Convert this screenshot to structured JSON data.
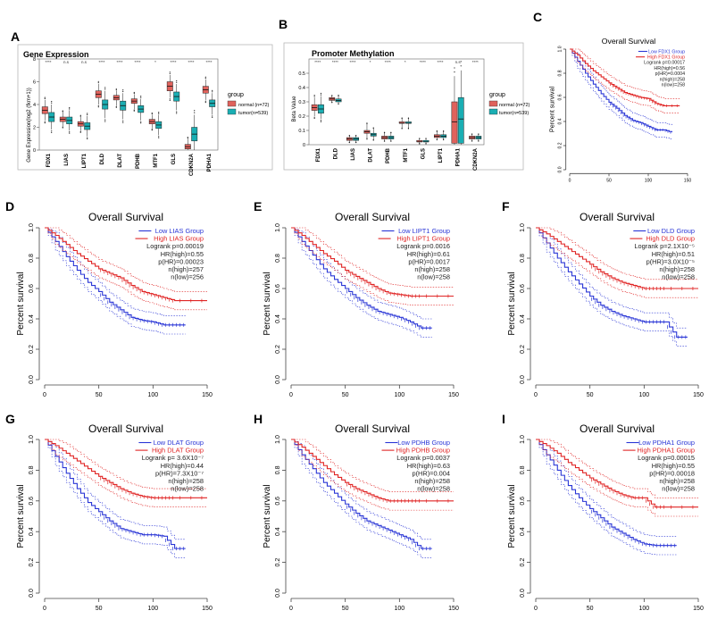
{
  "panels": {
    "A": {
      "letter": "A",
      "title": "Gene Expression",
      "ylabel": "Gene Expression(log2 (fkm+1))",
      "legend_title": "group",
      "legend_items": [
        "normal (n=72)",
        "tumor(n=539)"
      ]
    },
    "B": {
      "letter": "B",
      "title": "Promoter Methylation",
      "ylabel": "Beta Value",
      "legend_title": "group",
      "legend_items": [
        "normal (n=72)",
        "tumor(n=539)"
      ]
    },
    "C": {
      "letter": "C"
    },
    "D": {
      "letter": "D"
    },
    "E": {
      "letter": "E"
    },
    "F": {
      "letter": "F"
    },
    "G": {
      "letter": "G"
    },
    "H": {
      "letter": "H"
    },
    "I": {
      "letter": "I"
    }
  },
  "colors": {
    "normal": "#e0625c",
    "tumor": "#1aaeb3",
    "low": "#2a36d6",
    "high": "#e02525",
    "axis": "#444444"
  },
  "chart_data": [
    {
      "id": "A",
      "type": "box",
      "title": "Gene Expression",
      "ylabel": "Gene Expression(log2 (fkm+1))",
      "ylim": [
        0,
        8
      ],
      "yticks": [
        0,
        2,
        4,
        6,
        8
      ],
      "categories": [
        "FDX1",
        "LIAS",
        "LIPT1",
        "DLD",
        "DLAT",
        "PDHB",
        "MTF1",
        "GLS",
        "CDKN2A",
        "PDHA1"
      ],
      "significance": [
        "****",
        "n.s",
        "n.s",
        "****",
        "****",
        "****",
        "*",
        "****",
        "****",
        "****"
      ],
      "series": [
        {
          "name": "normal (n=72)",
          "key": "normal",
          "median": [
            3.5,
            2.7,
            2.3,
            4.9,
            4.6,
            4.3,
            2.5,
            5.6,
            0.3,
            5.3
          ],
          "q1": [
            3.2,
            2.5,
            2.1,
            4.6,
            4.4,
            4.1,
            2.3,
            5.2,
            0.1,
            5.0
          ],
          "q3": [
            3.8,
            2.9,
            2.5,
            5.2,
            4.8,
            4.5,
            2.7,
            6.0,
            0.5,
            5.6
          ],
          "low": [
            2.6,
            2.1,
            1.7,
            4.0,
            3.9,
            3.6,
            1.9,
            4.6,
            0.0,
            4.4
          ],
          "high": [
            4.4,
            3.3,
            2.9,
            5.8,
            5.2,
            4.9,
            3.1,
            6.6,
            1.0,
            6.2
          ]
        },
        {
          "name": "tumor(n=539)",
          "key": "tumor",
          "median": [
            2.9,
            2.6,
            2.1,
            4.0,
            3.9,
            3.6,
            2.2,
            4.7,
            1.4,
            4.1
          ],
          "q1": [
            2.5,
            2.3,
            1.8,
            3.6,
            3.5,
            3.3,
            1.9,
            4.3,
            0.8,
            3.8
          ],
          "q3": [
            3.3,
            2.9,
            2.4,
            4.4,
            4.3,
            3.9,
            2.5,
            5.1,
            2.0,
            4.4
          ],
          "low": [
            1.8,
            1.7,
            1.2,
            2.8,
            2.7,
            2.6,
            1.3,
            3.5,
            0.0,
            3.1
          ],
          "high": [
            4.0,
            3.5,
            3.0,
            5.2,
            5.0,
            4.5,
            3.1,
            5.8,
            3.1,
            5.0
          ]
        }
      ]
    },
    {
      "id": "B",
      "type": "box",
      "title": "Promoter Methylation",
      "ylabel": "Beta Value",
      "ylim": [
        0,
        0.6
      ],
      "yticks": [
        0,
        0.1,
        0.2,
        0.3,
        0.4,
        0.5
      ],
      "categories": [
        "FDX1",
        "DLD",
        "LIAS",
        "DLAT",
        "PDHB",
        "MTF1",
        "GLS",
        "LIPT1",
        "PDHA1",
        "CDKN2A"
      ],
      "significance": [
        "****",
        "****",
        "****",
        "*",
        "****",
        "*",
        "****",
        "****",
        "n.s",
        "****"
      ],
      "series": [
        {
          "name": "normal (n=72)",
          "key": "normal",
          "median": [
            0.26,
            0.32,
            0.04,
            0.09,
            0.05,
            0.15,
            0.02,
            0.06,
            0.16,
            0.05
          ],
          "q1": [
            0.24,
            0.31,
            0.03,
            0.08,
            0.04,
            0.15,
            0.02,
            0.05,
            0.01,
            0.04
          ],
          "q3": [
            0.28,
            0.33,
            0.05,
            0.1,
            0.06,
            0.16,
            0.03,
            0.07,
            0.3,
            0.06
          ],
          "low": [
            0.2,
            0.3,
            0.02,
            0.05,
            0.03,
            0.12,
            0.01,
            0.04,
            0.0,
            0.03
          ],
          "high": [
            0.33,
            0.34,
            0.06,
            0.14,
            0.08,
            0.18,
            0.04,
            0.09,
            0.48,
            0.07
          ]
        },
        {
          "name": "tumor(n=539)",
          "key": "tumor",
          "median": [
            0.25,
            0.31,
            0.04,
            0.07,
            0.05,
            0.15,
            0.02,
            0.06,
            0.18,
            0.05
          ],
          "q1": [
            0.22,
            0.3,
            0.03,
            0.06,
            0.04,
            0.15,
            0.02,
            0.05,
            0.01,
            0.04
          ],
          "q3": [
            0.28,
            0.32,
            0.05,
            0.08,
            0.06,
            0.16,
            0.03,
            0.07,
            0.33,
            0.06
          ],
          "low": [
            0.18,
            0.29,
            0.02,
            0.04,
            0.03,
            0.12,
            0.01,
            0.04,
            0.0,
            0.03
          ],
          "high": [
            0.34,
            0.34,
            0.06,
            0.11,
            0.08,
            0.18,
            0.04,
            0.09,
            0.52,
            0.07
          ]
        }
      ]
    },
    {
      "id": "C",
      "type": "line",
      "title": "Overall Survival",
      "ylabel": "Percent survival",
      "xlim": [
        0,
        150
      ],
      "ylim": [
        0,
        1
      ],
      "xticks": [
        0,
        50,
        100,
        150
      ],
      "yticks": [
        0,
        0.2,
        0.4,
        0.6,
        0.8,
        1.0
      ],
      "stats": [
        "Low FDX1 Group",
        "High FDX1 Group",
        "Logrank p=0.00017",
        "HR(high)=0.56",
        "p(HR)=0.0004",
        "n(high)=258",
        "n(low)=258"
      ],
      "series": [
        {
          "name": "Low FDX1 Group",
          "key": "low",
          "x": [
            0,
            10,
            20,
            30,
            40,
            50,
            60,
            70,
            80,
            90,
            100,
            110,
            120,
            130
          ],
          "y": [
            1.0,
            0.9,
            0.8,
            0.71,
            0.63,
            0.56,
            0.51,
            0.45,
            0.41,
            0.39,
            0.36,
            0.33,
            0.33,
            0.31
          ]
        },
        {
          "name": "High FDX1 Group",
          "key": "high",
          "x": [
            0,
            10,
            20,
            30,
            40,
            50,
            60,
            70,
            80,
            90,
            100,
            110,
            120,
            140
          ],
          "y": [
            1.0,
            0.95,
            0.88,
            0.82,
            0.77,
            0.72,
            0.68,
            0.64,
            0.62,
            0.6,
            0.59,
            0.55,
            0.53,
            0.53
          ]
        }
      ]
    },
    {
      "id": "D",
      "type": "line",
      "title": "Overall Survival",
      "ylabel": "Percent survival",
      "xlim": [
        0,
        150
      ],
      "ylim": [
        0,
        1
      ],
      "xticks": [
        0,
        50,
        100,
        150
      ],
      "yticks": [
        0,
        0.2,
        0.4,
        0.6,
        0.8,
        1.0
      ],
      "stats": [
        "Low LIAS Group",
        "High LIAS Group",
        "Logrank p=0.00019",
        "HR(high)=0.55",
        "p(HR)=0.00023",
        "n(high)=257",
        "n(low)=256"
      ],
      "series": [
        {
          "name": "Low LIAS Group",
          "key": "low",
          "x": [
            0,
            10,
            20,
            30,
            40,
            50,
            60,
            70,
            80,
            90,
            100,
            110,
            120,
            130
          ],
          "y": [
            1.0,
            0.91,
            0.81,
            0.72,
            0.64,
            0.58,
            0.51,
            0.46,
            0.41,
            0.39,
            0.38,
            0.36,
            0.36,
            0.36
          ]
        },
        {
          "name": "High LIAS Group",
          "key": "high",
          "x": [
            0,
            10,
            20,
            30,
            40,
            50,
            60,
            70,
            80,
            90,
            100,
            110,
            120,
            150
          ],
          "y": [
            1.0,
            0.95,
            0.89,
            0.83,
            0.78,
            0.73,
            0.7,
            0.67,
            0.62,
            0.58,
            0.56,
            0.54,
            0.52,
            0.52
          ]
        }
      ]
    },
    {
      "id": "E",
      "type": "line",
      "title": "Overall Survival",
      "ylabel": "Percent survival",
      "xlim": [
        0,
        150
      ],
      "ylim": [
        0,
        1
      ],
      "xticks": [
        0,
        50,
        100,
        150
      ],
      "yticks": [
        0,
        0.2,
        0.4,
        0.6,
        0.8,
        1.0
      ],
      "stats": [
        "Low LIPT1 Group",
        "High LIPT1 Group",
        "Logrank p=0.0016",
        "HR(high)=0.61",
        "p(HR)=0.0017",
        "n(high)=258",
        "n(low)=258"
      ],
      "series": [
        {
          "name": "Low LIPT1 Group",
          "key": "low",
          "x": [
            0,
            10,
            20,
            30,
            40,
            50,
            60,
            70,
            80,
            90,
            100,
            110,
            120,
            130
          ],
          "y": [
            1.0,
            0.91,
            0.82,
            0.73,
            0.66,
            0.6,
            0.54,
            0.49,
            0.45,
            0.43,
            0.41,
            0.38,
            0.34,
            0.34
          ]
        },
        {
          "name": "High LIPT1 Group",
          "key": "high",
          "x": [
            0,
            10,
            20,
            30,
            40,
            50,
            60,
            70,
            80,
            90,
            100,
            110,
            120,
            150
          ],
          "y": [
            1.0,
            0.95,
            0.89,
            0.83,
            0.78,
            0.72,
            0.68,
            0.64,
            0.6,
            0.57,
            0.56,
            0.55,
            0.55,
            0.55
          ]
        }
      ]
    },
    {
      "id": "F",
      "type": "line",
      "title": "Overall Survival",
      "ylabel": "Percent survival",
      "xlim": [
        0,
        150
      ],
      "ylim": [
        0,
        1
      ],
      "xticks": [
        0,
        50,
        100,
        150
      ],
      "yticks": [
        0,
        0.2,
        0.4,
        0.6,
        0.8,
        1.0
      ],
      "stats": [
        "Low DLD Group",
        "High DLD Group",
        "Logrank p=2.1X10⁻⁵",
        "HR(high)=0.51",
        "p(HR)=3.0X10⁻⁵",
        "n(high)=258",
        "n(low)=258"
      ],
      "series": [
        {
          "name": "Low DLD Group",
          "key": "low",
          "x": [
            0,
            10,
            20,
            30,
            40,
            50,
            60,
            70,
            80,
            90,
            100,
            110,
            120,
            130,
            140
          ],
          "y": [
            1.0,
            0.9,
            0.8,
            0.71,
            0.63,
            0.55,
            0.49,
            0.45,
            0.42,
            0.4,
            0.38,
            0.38,
            0.38,
            0.28,
            0.28
          ]
        },
        {
          "name": "High DLD Group",
          "key": "high",
          "x": [
            0,
            10,
            20,
            30,
            40,
            50,
            60,
            70,
            80,
            90,
            100,
            110,
            120,
            150
          ],
          "y": [
            1.0,
            0.96,
            0.91,
            0.86,
            0.81,
            0.76,
            0.71,
            0.67,
            0.64,
            0.62,
            0.6,
            0.6,
            0.6,
            0.6
          ]
        }
      ]
    },
    {
      "id": "G",
      "type": "line",
      "title": "Overall Survival",
      "ylabel": "Percent survival",
      "xlim": [
        0,
        150
      ],
      "ylim": [
        0,
        1
      ],
      "xticks": [
        0,
        50,
        100,
        150
      ],
      "yticks": [
        0,
        0.2,
        0.4,
        0.6,
        0.8,
        1.0
      ],
      "stats": [
        "Low DLAT Group",
        "High DLAT Group",
        "Logrank p= 3.6X10⁻⁷",
        "HR(high)=0.44",
        "p(HR)=7.3X10⁻⁷",
        "n(high)=258",
        "n(low)=258"
      ],
      "series": [
        {
          "name": "Low DLAT Group",
          "key": "low",
          "x": [
            0,
            10,
            20,
            30,
            40,
            50,
            60,
            70,
            80,
            90,
            100,
            110,
            120,
            130
          ],
          "y": [
            1.0,
            0.89,
            0.78,
            0.68,
            0.59,
            0.53,
            0.47,
            0.42,
            0.4,
            0.38,
            0.38,
            0.37,
            0.29,
            0.29
          ]
        },
        {
          "name": "High DLAT Group",
          "key": "high",
          "x": [
            0,
            10,
            20,
            30,
            40,
            50,
            60,
            70,
            80,
            90,
            100,
            110,
            120,
            150
          ],
          "y": [
            1.0,
            0.96,
            0.91,
            0.86,
            0.81,
            0.76,
            0.72,
            0.68,
            0.65,
            0.63,
            0.62,
            0.62,
            0.62,
            0.62
          ]
        }
      ]
    },
    {
      "id": "H",
      "type": "line",
      "title": "Overall Survival",
      "ylabel": "Percent survival",
      "xlim": [
        0,
        150
      ],
      "ylim": [
        0,
        1
      ],
      "xticks": [
        0,
        50,
        100,
        150
      ],
      "yticks": [
        0,
        0.2,
        0.4,
        0.6,
        0.8,
        1.0
      ],
      "stats": [
        "Low PDHB Group",
        "High PDHB Group",
        "Logrank p=0.0037",
        "HR(high)=0.63",
        "p(HR)=0.004",
        "n(high)=258",
        "n(low)=258"
      ],
      "series": [
        {
          "name": "Low PDHB Group",
          "key": "low",
          "x": [
            0,
            10,
            20,
            30,
            40,
            50,
            60,
            70,
            80,
            90,
            100,
            110,
            120,
            130
          ],
          "y": [
            1.0,
            0.9,
            0.81,
            0.72,
            0.65,
            0.58,
            0.52,
            0.47,
            0.44,
            0.41,
            0.38,
            0.35,
            0.29,
            0.29
          ]
        },
        {
          "name": "High PDHB Group",
          "key": "high",
          "x": [
            0,
            10,
            20,
            30,
            40,
            50,
            60,
            70,
            80,
            90,
            100,
            110,
            120,
            150
          ],
          "y": [
            1.0,
            0.95,
            0.89,
            0.83,
            0.77,
            0.72,
            0.68,
            0.65,
            0.62,
            0.6,
            0.6,
            0.6,
            0.6,
            0.6
          ]
        }
      ]
    },
    {
      "id": "I",
      "type": "line",
      "title": "Overall Survival",
      "ylabel": "Percent survival",
      "xlim": [
        0,
        150
      ],
      "ylim": [
        0,
        1
      ],
      "xticks": [
        0,
        50,
        100,
        150
      ],
      "yticks": [
        0,
        0.2,
        0.4,
        0.6,
        0.8,
        1.0
      ],
      "stats": [
        "Low PDHA1 Group",
        "High PDHA1 Group",
        "Logrank p=0.00015",
        "HR(high)=0.55",
        "p(HR)=0.00018",
        "n(high)=258",
        "n(low)=258"
      ],
      "series": [
        {
          "name": "Low PDHA1 Group",
          "key": "low",
          "x": [
            0,
            10,
            20,
            30,
            40,
            50,
            60,
            70,
            80,
            90,
            100,
            110,
            120,
            130
          ],
          "y": [
            1.0,
            0.9,
            0.8,
            0.7,
            0.62,
            0.55,
            0.49,
            0.43,
            0.39,
            0.35,
            0.32,
            0.31,
            0.31,
            0.31
          ]
        },
        {
          "name": "High PDHA1 Group",
          "key": "high",
          "x": [
            0,
            10,
            20,
            30,
            40,
            50,
            60,
            70,
            80,
            90,
            100,
            110,
            120,
            150
          ],
          "y": [
            1.0,
            0.96,
            0.91,
            0.85,
            0.8,
            0.75,
            0.71,
            0.67,
            0.64,
            0.62,
            0.62,
            0.56,
            0.56,
            0.56
          ]
        }
      ]
    }
  ]
}
